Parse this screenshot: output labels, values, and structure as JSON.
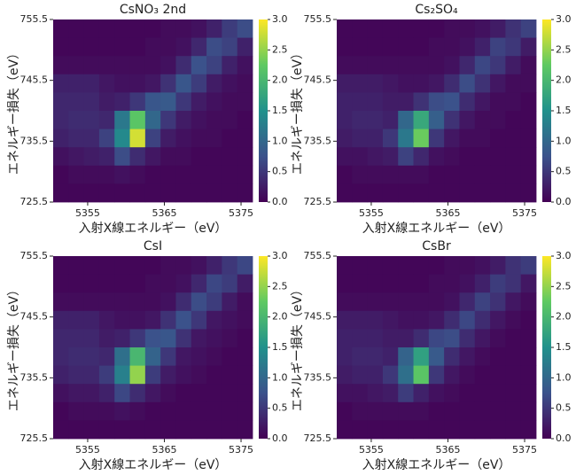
{
  "chart_data": [
    {
      "type": "heatmap",
      "title": "CsNO₃ 2nd",
      "x_label": "入射X線エネルギー（eV）",
      "y_label": "エネルギー損失（eV）",
      "colormap": "viridis",
      "x": [
        5351.5,
        5353.5,
        5355.5,
        5357.5,
        5359.5,
        5361.5,
        5363.5,
        5365.5,
        5367.5,
        5369.5,
        5371.5,
        5373.5,
        5375.5
      ],
      "y": [
        754,
        751,
        748,
        745,
        742,
        739,
        736,
        733,
        730,
        727
      ],
      "z": [
        [
          0.05,
          0.05,
          0.05,
          0.05,
          0.05,
          0.05,
          0.05,
          0.1,
          0.1,
          0.15,
          0.3,
          0.55,
          0.7
        ],
        [
          0.05,
          0.05,
          0.05,
          0.05,
          0.05,
          0.05,
          0.1,
          0.1,
          0.15,
          0.35,
          0.7,
          0.6,
          0.3
        ],
        [
          0.1,
          0.1,
          0.1,
          0.1,
          0.1,
          0.1,
          0.1,
          0.15,
          0.4,
          0.75,
          0.6,
          0.3,
          0.15
        ],
        [
          0.3,
          0.3,
          0.3,
          0.2,
          0.15,
          0.15,
          0.2,
          0.45,
          0.8,
          0.55,
          0.25,
          0.15,
          0.1
        ],
        [
          0.35,
          0.35,
          0.35,
          0.25,
          0.3,
          0.5,
          0.8,
          0.85,
          0.5,
          0.25,
          0.15,
          0.1,
          0.1
        ],
        [
          0.35,
          0.4,
          0.4,
          0.35,
          1.2,
          2.2,
          1.0,
          0.5,
          0.25,
          0.15,
          0.1,
          0.1,
          0.05
        ],
        [
          0.3,
          0.35,
          0.35,
          0.6,
          1.4,
          2.8,
          0.6,
          0.25,
          0.15,
          0.1,
          0.1,
          0.05,
          0.05
        ],
        [
          0.15,
          0.2,
          0.25,
          0.3,
          0.7,
          0.4,
          0.2,
          0.1,
          0.1,
          0.05,
          0.05,
          0.05,
          0.05
        ],
        [
          0.05,
          0.1,
          0.1,
          0.1,
          0.15,
          0.1,
          0.05,
          0.05,
          0.05,
          0.05,
          0.05,
          0.05,
          0.05
        ],
        [
          0.05,
          0.05,
          0.05,
          0.05,
          0.05,
          0.05,
          0.05,
          0.05,
          0.05,
          0.05,
          0.05,
          0.05,
          0.05
        ]
      ],
      "xlim": [
        5350.5,
        5376.5
      ],
      "ylim": [
        725.5,
        755.5
      ],
      "xticks": [
        5355,
        5365,
        5375
      ],
      "yticks": [
        725.5,
        735.5,
        745.5,
        755.5
      ],
      "clim": [
        0,
        3
      ],
      "cticks": [
        {
          "value": 0,
          "label": "0.0"
        },
        0.5,
        {
          "value": 1,
          "label": "1.0"
        },
        1.5,
        {
          "value": 2,
          "label": "2.0"
        },
        2.5,
        {
          "value": 3,
          "label": "3.0"
        }
      ]
    },
    {
      "type": "heatmap",
      "title": "Cs₂SO₄",
      "x_label": "入射X線エネルギー（eV）",
      "y_label": "エネルギー損失（eV）",
      "colormap": "viridis",
      "x": [
        5351.5,
        5353.5,
        5355.5,
        5357.5,
        5359.5,
        5361.5,
        5363.5,
        5365.5,
        5367.5,
        5369.5,
        5371.5,
        5373.5,
        5375.5
      ],
      "y": [
        754,
        751,
        748,
        745,
        742,
        739,
        736,
        733,
        730,
        727
      ],
      "z": [
        [
          0.05,
          0.05,
          0.05,
          0.05,
          0.05,
          0.05,
          0.05,
          0.1,
          0.1,
          0.15,
          0.25,
          0.45,
          0.6
        ],
        [
          0.05,
          0.05,
          0.05,
          0.05,
          0.05,
          0.05,
          0.1,
          0.1,
          0.15,
          0.3,
          0.6,
          0.5,
          0.25
        ],
        [
          0.1,
          0.1,
          0.1,
          0.1,
          0.1,
          0.1,
          0.1,
          0.15,
          0.35,
          0.65,
          0.5,
          0.25,
          0.1
        ],
        [
          0.25,
          0.25,
          0.25,
          0.2,
          0.15,
          0.15,
          0.2,
          0.4,
          0.7,
          0.45,
          0.2,
          0.1,
          0.1
        ],
        [
          0.3,
          0.3,
          0.3,
          0.25,
          0.25,
          0.45,
          0.7,
          0.75,
          0.4,
          0.2,
          0.1,
          0.1,
          0.05
        ],
        [
          0.3,
          0.35,
          0.35,
          0.3,
          1.0,
          1.8,
          0.9,
          0.45,
          0.2,
          0.1,
          0.1,
          0.05,
          0.05
        ],
        [
          0.25,
          0.3,
          0.3,
          0.5,
          1.2,
          2.3,
          0.5,
          0.2,
          0.1,
          0.1,
          0.05,
          0.05,
          0.05
        ],
        [
          0.15,
          0.15,
          0.2,
          0.25,
          0.6,
          0.35,
          0.15,
          0.1,
          0.05,
          0.05,
          0.05,
          0.05,
          0.05
        ],
        [
          0.05,
          0.1,
          0.1,
          0.1,
          0.1,
          0.1,
          0.05,
          0.05,
          0.05,
          0.05,
          0.05,
          0.05,
          0.05
        ],
        [
          0.05,
          0.05,
          0.05,
          0.05,
          0.05,
          0.05,
          0.05,
          0.05,
          0.05,
          0.05,
          0.05,
          0.05,
          0.05
        ]
      ],
      "xlim": [
        5350.5,
        5376.5
      ],
      "ylim": [
        725.5,
        755.5
      ],
      "xticks": [
        5355,
        5365,
        5375
      ],
      "yticks": [
        725.5,
        735.5,
        745.5,
        755.5
      ],
      "clim": [
        0,
        3
      ],
      "cticks": [
        {
          "value": 0,
          "label": "0.0"
        },
        0.5,
        {
          "value": 1,
          "label": "1.0"
        },
        1.5,
        {
          "value": 2,
          "label": "2.0"
        },
        2.5,
        {
          "value": 3,
          "label": "3.0"
        }
      ]
    },
    {
      "type": "heatmap",
      "title": "CsI",
      "x_label": "入射X線エネルギー（eV）",
      "y_label": "エネルギー損失（eV）",
      "colormap": "viridis",
      "x": [
        5351.5,
        5353.5,
        5355.5,
        5357.5,
        5359.5,
        5361.5,
        5363.5,
        5365.5,
        5367.5,
        5369.5,
        5371.5,
        5373.5,
        5375.5
      ],
      "y": [
        754,
        751,
        748,
        745,
        742,
        739,
        736,
        733,
        730,
        727
      ],
      "z": [
        [
          0.05,
          0.05,
          0.05,
          0.05,
          0.05,
          0.05,
          0.05,
          0.1,
          0.1,
          0.15,
          0.3,
          0.5,
          0.65
        ],
        [
          0.05,
          0.05,
          0.05,
          0.05,
          0.05,
          0.05,
          0.1,
          0.1,
          0.15,
          0.35,
          0.65,
          0.55,
          0.25
        ],
        [
          0.1,
          0.1,
          0.1,
          0.1,
          0.1,
          0.1,
          0.1,
          0.15,
          0.4,
          0.7,
          0.55,
          0.25,
          0.1
        ],
        [
          0.3,
          0.3,
          0.3,
          0.2,
          0.15,
          0.15,
          0.2,
          0.45,
          0.75,
          0.5,
          0.2,
          0.15,
          0.1
        ],
        [
          0.35,
          0.35,
          0.35,
          0.25,
          0.3,
          0.5,
          0.75,
          0.8,
          0.45,
          0.2,
          0.15,
          0.1,
          0.05
        ],
        [
          0.35,
          0.4,
          0.4,
          0.35,
          1.1,
          2.0,
          0.95,
          0.5,
          0.2,
          0.15,
          0.1,
          0.05,
          0.05
        ],
        [
          0.3,
          0.35,
          0.35,
          0.55,
          1.3,
          2.5,
          0.55,
          0.25,
          0.15,
          0.1,
          0.05,
          0.05,
          0.05
        ],
        [
          0.15,
          0.2,
          0.2,
          0.3,
          0.65,
          0.4,
          0.2,
          0.1,
          0.05,
          0.05,
          0.05,
          0.05,
          0.05
        ],
        [
          0.05,
          0.1,
          0.1,
          0.1,
          0.15,
          0.1,
          0.05,
          0.05,
          0.05,
          0.05,
          0.05,
          0.05,
          0.05
        ],
        [
          0.05,
          0.05,
          0.05,
          0.05,
          0.05,
          0.05,
          0.05,
          0.05,
          0.05,
          0.05,
          0.05,
          0.05,
          0.05
        ]
      ],
      "xlim": [
        5350.5,
        5376.5
      ],
      "ylim": [
        725.5,
        755.5
      ],
      "xticks": [
        5355,
        5365,
        5375
      ],
      "yticks": [
        725.5,
        735.5,
        745.5,
        755.5
      ],
      "clim": [
        0,
        3
      ],
      "cticks": [
        {
          "value": 0,
          "label": "0.0"
        },
        0.5,
        {
          "value": 1,
          "label": "1.0"
        },
        1.5,
        {
          "value": 2,
          "label": "2.0"
        },
        2.5,
        {
          "value": 3,
          "label": "3.0"
        }
      ]
    },
    {
      "type": "heatmap",
      "title": "CsBr",
      "x_label": "入射X線エネルギー（eV）",
      "y_label": "エネルギー損失（eV）",
      "colormap": "viridis",
      "x": [
        5351.5,
        5353.5,
        5355.5,
        5357.5,
        5359.5,
        5361.5,
        5363.5,
        5365.5,
        5367.5,
        5369.5,
        5371.5,
        5373.5,
        5375.5
      ],
      "y": [
        754,
        751,
        748,
        745,
        742,
        739,
        736,
        733,
        730,
        727
      ],
      "z": [
        [
          0.05,
          0.05,
          0.05,
          0.05,
          0.05,
          0.05,
          0.05,
          0.1,
          0.1,
          0.15,
          0.25,
          0.45,
          0.55
        ],
        [
          0.05,
          0.05,
          0.05,
          0.05,
          0.05,
          0.05,
          0.1,
          0.1,
          0.15,
          0.3,
          0.55,
          0.45,
          0.2
        ],
        [
          0.1,
          0.1,
          0.1,
          0.1,
          0.1,
          0.1,
          0.1,
          0.15,
          0.35,
          0.6,
          0.45,
          0.2,
          0.1
        ],
        [
          0.25,
          0.25,
          0.25,
          0.2,
          0.15,
          0.15,
          0.2,
          0.4,
          0.65,
          0.4,
          0.2,
          0.1,
          0.05
        ],
        [
          0.3,
          0.3,
          0.3,
          0.25,
          0.25,
          0.4,
          0.65,
          0.7,
          0.4,
          0.2,
          0.1,
          0.05,
          0.05
        ],
        [
          0.3,
          0.35,
          0.35,
          0.3,
          0.95,
          1.7,
          0.85,
          0.4,
          0.2,
          0.1,
          0.05,
          0.05,
          0.05
        ],
        [
          0.25,
          0.3,
          0.3,
          0.5,
          1.1,
          2.2,
          0.5,
          0.2,
          0.1,
          0.05,
          0.05,
          0.05,
          0.05
        ],
        [
          0.15,
          0.15,
          0.2,
          0.25,
          0.55,
          0.3,
          0.15,
          0.1,
          0.05,
          0.05,
          0.05,
          0.05,
          0.05
        ],
        [
          0.05,
          0.1,
          0.1,
          0.1,
          0.1,
          0.1,
          0.05,
          0.05,
          0.05,
          0.05,
          0.05,
          0.05,
          0.05
        ],
        [
          0.05,
          0.05,
          0.05,
          0.05,
          0.05,
          0.05,
          0.05,
          0.05,
          0.05,
          0.05,
          0.05,
          0.05,
          0.05
        ]
      ],
      "xlim": [
        5350.5,
        5376.5
      ],
      "ylim": [
        725.5,
        755.5
      ],
      "xticks": [
        5355,
        5365,
        5375
      ],
      "yticks": [
        725.5,
        735.5,
        745.5,
        755.5
      ],
      "clim": [
        0,
        3
      ],
      "cticks": [
        {
          "value": 0,
          "label": "0.0"
        },
        0.5,
        {
          "value": 1,
          "label": "1.0"
        },
        1.5,
        {
          "value": 2,
          "label": "2.0"
        },
        2.5,
        {
          "value": 3,
          "label": "3.0"
        }
      ]
    }
  ]
}
